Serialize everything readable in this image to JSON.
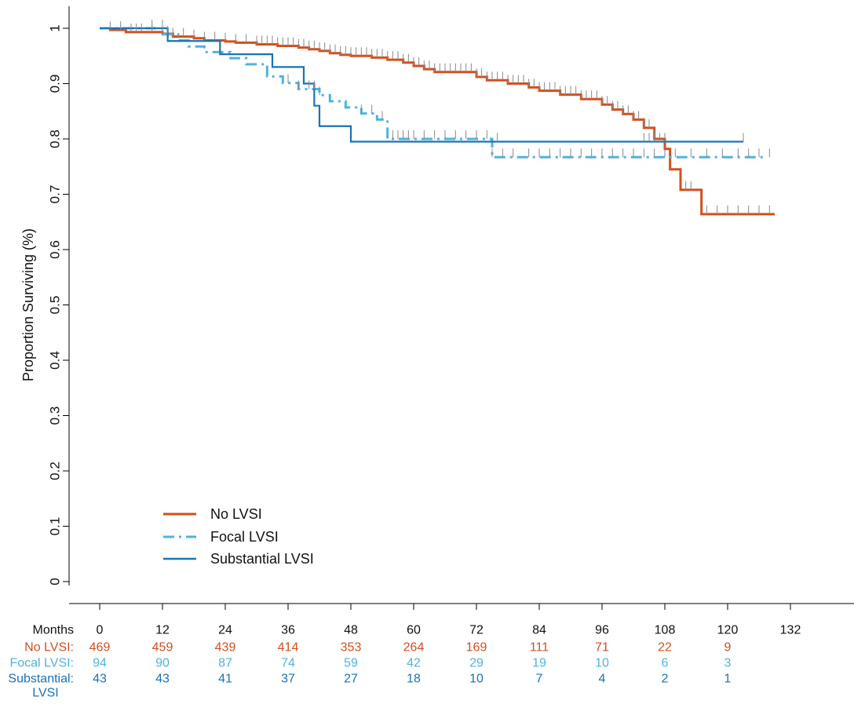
{
  "chart_data": {
    "type": "line",
    "subtype": "kaplan-meier",
    "title": "",
    "xlabel": "Months",
    "ylabel": "Proportion Surviving (%)",
    "xlim": [
      0,
      132
    ],
    "ylim": [
      0,
      1
    ],
    "xticks": [
      0,
      12,
      24,
      36,
      48,
      60,
      72,
      84,
      96,
      108,
      120,
      132
    ],
    "yticks": [
      0,
      0.1,
      0.2,
      0.3,
      0.4,
      0.5,
      0.6,
      0.7,
      0.8,
      0.9,
      1
    ],
    "ytick_labels": [
      "0",
      "0.1",
      "0.2",
      "0.3",
      "0.4",
      "0.5",
      "0.6",
      "0.7",
      "0.8",
      "0.9",
      "1"
    ],
    "grid": false,
    "legend_position": "bottom-left",
    "colors": {
      "no_lvsi": "#d24f1c",
      "focal_lvsi": "#4fb3e0",
      "substantial_lvsi": "#1874b4",
      "censor": "#888888"
    },
    "series": [
      {
        "name": "No LVSI",
        "color": "#d24f1c",
        "dash": "solid",
        "x": [
          0,
          2,
          5,
          12,
          14,
          18,
          20,
          24,
          26,
          30,
          34,
          38,
          40,
          42,
          44,
          46,
          48,
          52,
          55,
          58,
          60,
          62,
          64,
          72,
          74,
          78,
          82,
          84,
          88,
          92,
          96,
          98,
          100,
          102,
          104,
          106,
          108,
          109,
          111,
          115,
          129
        ],
        "y": [
          1,
          0.997,
          0.993,
          0.99,
          0.985,
          0.982,
          0.978,
          0.976,
          0.974,
          0.971,
          0.968,
          0.965,
          0.962,
          0.959,
          0.955,
          0.952,
          0.95,
          0.947,
          0.943,
          0.938,
          0.932,
          0.926,
          0.921,
          0.912,
          0.906,
          0.9,
          0.893,
          0.887,
          0.88,
          0.872,
          0.862,
          0.853,
          0.845,
          0.835,
          0.82,
          0.8,
          0.782,
          0.745,
          0.708,
          0.664,
          0.664
        ],
        "censor_x": [
          2,
          4,
          6,
          7,
          8,
          10,
          12,
          14,
          16,
          18,
          20,
          22,
          24,
          26,
          28,
          30,
          31,
          32,
          33,
          34,
          35,
          36,
          37,
          38,
          39,
          40,
          41,
          42,
          43,
          44,
          45,
          46,
          47,
          48,
          49,
          50,
          51,
          52,
          53,
          54,
          55,
          56,
          57,
          58,
          59,
          60,
          61,
          62,
          63,
          64,
          65,
          66,
          67,
          68,
          69,
          70,
          71,
          72,
          73,
          74,
          75,
          76,
          77,
          78,
          79,
          80,
          81,
          82,
          83,
          84,
          85,
          86,
          87,
          88,
          89,
          90,
          91,
          92,
          93,
          94,
          95,
          96,
          97,
          98,
          99,
          100,
          101,
          102,
          103,
          104,
          105,
          106,
          112,
          113,
          116,
          118,
          120,
          122,
          124,
          126,
          128
        ]
      },
      {
        "name": "Focal LVSI",
        "color": "#4fb3e0",
        "dash": "dash-dot",
        "x": [
          0,
          12,
          15,
          17,
          20,
          25,
          28,
          32,
          35,
          38,
          42,
          44,
          47,
          50,
          53,
          55,
          75,
          127
        ],
        "y": [
          1,
          0.989,
          0.978,
          0.967,
          0.957,
          0.946,
          0.935,
          0.913,
          0.901,
          0.89,
          0.879,
          0.868,
          0.857,
          0.846,
          0.835,
          0.8,
          0.767,
          0.767
        ],
        "censor_x": [
          10,
          13,
          36,
          38,
          40,
          41,
          42,
          50,
          52,
          54,
          56,
          57,
          58,
          59,
          60,
          62,
          64,
          66,
          68,
          70,
          72,
          74,
          75,
          77,
          79,
          82,
          84,
          86,
          88,
          90,
          92,
          94,
          96,
          98,
          100,
          102,
          104,
          106,
          108,
          110,
          113,
          116,
          119,
          122,
          124,
          126,
          128
        ]
      },
      {
        "name": "Substantial LVSI",
        "color": "#1874b4",
        "dash": "solid",
        "x": [
          0,
          13,
          23,
          33,
          39,
          41,
          42,
          48,
          123
        ],
        "y": [
          1,
          0.977,
          0.953,
          0.93,
          0.9,
          0.86,
          0.823,
          0.795,
          0.795
        ],
        "censor_x": [
          12,
          76,
          104,
          105,
          106,
          107,
          108,
          123
        ]
      }
    ],
    "risk_table": {
      "header_label": "Months",
      "times": [
        "0",
        "12",
        "24",
        "36",
        "48",
        "60",
        "72",
        "84",
        "96",
        "108",
        "120",
        "132"
      ],
      "rows": [
        {
          "label": "No LVSI:",
          "color": "#d24f1c",
          "counts": [
            "469",
            "459",
            "439",
            "414",
            "353",
            "264",
            "169",
            "111",
            "71",
            "22",
            "9"
          ]
        },
        {
          "label": "Focal LVSI:",
          "color": "#4fb3e0",
          "counts": [
            "94",
            "90",
            "87",
            "74",
            "59",
            "42",
            "29",
            "19",
            "10",
            "6",
            "3"
          ]
        },
        {
          "label": "Substantial:",
          "label2": "LVSI",
          "color": "#1874b4",
          "counts": [
            "43",
            "43",
            "41",
            "37",
            "27",
            "18",
            "10",
            "7",
            "4",
            "2",
            "1"
          ]
        }
      ]
    }
  }
}
